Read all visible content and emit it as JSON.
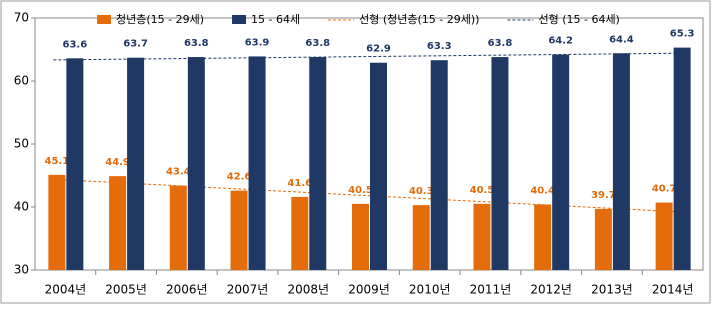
{
  "chart_data": {
    "type": "bar",
    "categories": [
      "2004년",
      "2005년",
      "2006년",
      "2007년",
      "2008년",
      "2009년",
      "2010년",
      "2011년",
      "2012년",
      "2013년",
      "2014년"
    ],
    "series": [
      {
        "name": "청년층(15 - 29세)",
        "color": "#e46c0a",
        "values": [
          45.1,
          44.9,
          43.4,
          42.6,
          41.6,
          40.5,
          40.3,
          40.5,
          40.4,
          39.7,
          40.7
        ],
        "trendline": "선형 (청년층(15 - 29세))"
      },
      {
        "name": "15 - 64세",
        "color": "#1f3864",
        "values": [
          63.6,
          63.7,
          63.8,
          63.9,
          63.8,
          62.9,
          63.3,
          63.8,
          64.2,
          64.4,
          65.3
        ],
        "trendline": "선형 (15 - 64세)"
      }
    ],
    "ylim": [
      30,
      70
    ],
    "yticks": [
      30,
      40,
      50,
      60,
      70
    ],
    "grid": false,
    "legend": "top",
    "value_labels_shown": true
  }
}
